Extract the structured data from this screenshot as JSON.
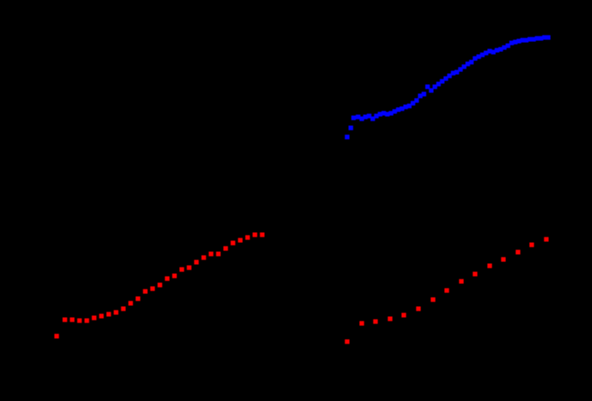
{
  "background": "#000000",
  "chart_data": [
    {
      "type": "scatter",
      "panel": "bottom-left",
      "marker": "square",
      "grid": false,
      "series": [
        {
          "color": "#ff0000",
          "x": [
            62,
            71,
            79,
            87,
            95,
            103,
            111,
            119,
            127,
            135,
            143,
            151,
            159,
            167,
            175,
            183,
            191,
            199,
            207,
            215,
            223,
            231,
            239,
            247,
            255,
            263,
            271,
            279,
            287
          ],
          "y": [
            368,
            350,
            350,
            351,
            351,
            348,
            346,
            344,
            342,
            338,
            332,
            327,
            319,
            316,
            312,
            305,
            302,
            295,
            293,
            287,
            282,
            278,
            278,
            272,
            266,
            263,
            260,
            257,
            257
          ]
        }
      ]
    },
    {
      "type": "scatter",
      "panel": "top-right",
      "marker": "square",
      "grid": false,
      "series": [
        {
          "color": "#0000ff",
          "x": [
            380,
            384,
            387,
            392,
            396,
            400,
            404,
            408,
            412,
            416,
            420,
            424,
            428,
            432,
            436,
            440,
            444,
            448,
            452,
            456,
            460,
            464,
            468,
            472,
            476,
            480,
            484,
            488,
            492,
            496,
            500,
            504,
            508,
            512,
            516,
            520,
            524,
            528,
            532,
            536,
            540,
            544,
            548,
            552,
            556,
            560,
            564,
            568,
            572,
            576,
            580,
            584,
            588,
            592,
            596,
            600
          ],
          "y": [
            150,
            140,
            129,
            128,
            130,
            128,
            127,
            130,
            127,
            125,
            124,
            125,
            124,
            122,
            120,
            119,
            117,
            116,
            113,
            110,
            105,
            103,
            95,
            99,
            95,
            92,
            89,
            86,
            83,
            80,
            79,
            76,
            73,
            70,
            68,
            64,
            62,
            60,
            58,
            56,
            57,
            55,
            54,
            52,
            50,
            47,
            46,
            45,
            44,
            44,
            43,
            43,
            42,
            42,
            41,
            41
          ]
        }
      ]
    },
    {
      "type": "scatter",
      "panel": "bottom-right",
      "marker": "square",
      "grid": false,
      "series": [
        {
          "color": "#ff0000",
          "x": [
            380,
            396,
            411,
            427,
            442,
            458,
            474,
            489,
            505,
            520,
            536,
            551,
            567,
            582,
            598
          ],
          "y": [
            374,
            354,
            352,
            349,
            345,
            338,
            328,
            318,
            308,
            300,
            291,
            284,
            276,
            268,
            262
          ]
        }
      ]
    }
  ]
}
